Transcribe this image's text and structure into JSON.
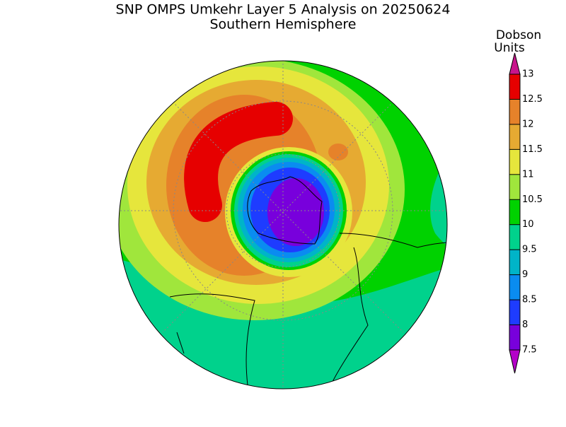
{
  "header": {
    "title": "SNP OMPS Umkehr Layer 5 Analysis on 20250624",
    "subtitle": "Southern Hemisphere"
  },
  "colorbar": {
    "unit_lines": [
      "Dobson",
      "Units"
    ],
    "ticks": [
      7.5,
      8,
      8.5,
      9,
      9.5,
      10,
      10.5,
      11,
      11.5,
      12,
      12.5,
      13
    ],
    "colors": [
      "#7800dc",
      "#1e3cff",
      "#0a8cf0",
      "#00b4c8",
      "#00d28c",
      "#00d200",
      "#a0e63c",
      "#e6e63c",
      "#e6aa32",
      "#e6822a",
      "#e60000"
    ],
    "under_color": "#b400c8",
    "over_color": "#c8148c"
  }
}
